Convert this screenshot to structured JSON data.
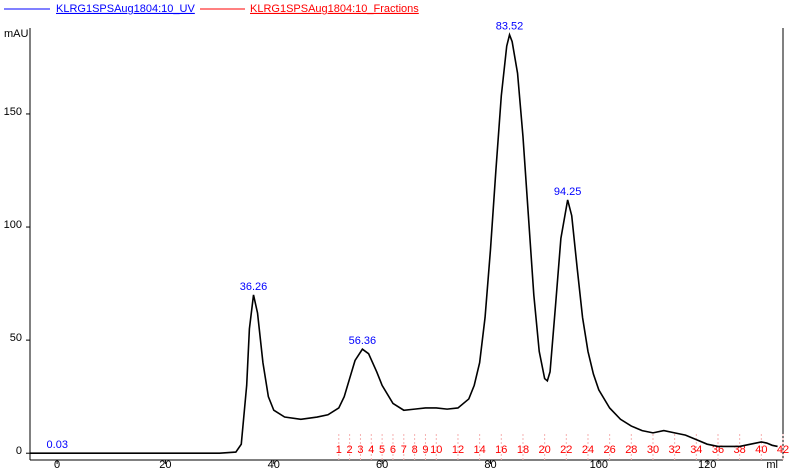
{
  "chart_data": {
    "type": "line",
    "y_label": "mAU",
    "x_label": "ml",
    "xlim": [
      -5,
      134
    ],
    "ylim": [
      -3,
      188
    ],
    "xticks": [
      0,
      20,
      40,
      60,
      80,
      100,
      120
    ],
    "yticks": [
      0,
      50,
      100,
      150
    ],
    "series": [
      {
        "name": "KLRG1SPSAug1804:10_UV",
        "color": "#0000ff",
        "x": [
          -5,
          0,
          10,
          20,
          30,
          33,
          34,
          35,
          35.5,
          36.26,
          37,
          38,
          39,
          40,
          42,
          45,
          48,
          50,
          52,
          53,
          54,
          55,
          56.36,
          57.5,
          59,
          60,
          62,
          64,
          66,
          68,
          70,
          72,
          74,
          76,
          77,
          78,
          79,
          80,
          81,
          82,
          83,
          83.52,
          84,
          85,
          86,
          87,
          88,
          89,
          90,
          90.5,
          91,
          92,
          93,
          94.25,
          95,
          96,
          97,
          98,
          99,
          100,
          102,
          104,
          106,
          108,
          110,
          112,
          114,
          116,
          118,
          120,
          122,
          124,
          126,
          128,
          130,
          131,
          132,
          133
        ],
        "values": [
          0,
          0,
          0,
          0,
          0,
          0.5,
          4,
          30,
          55,
          70,
          62,
          40,
          25,
          19,
          16,
          15,
          16,
          17,
          20,
          25,
          33,
          41,
          46,
          44,
          36,
          30,
          22,
          19,
          19.5,
          20,
          20,
          19.5,
          20,
          24,
          30,
          40,
          60,
          90,
          125,
          158,
          180,
          185,
          182,
          168,
          140,
          105,
          70,
          45,
          33,
          32,
          36,
          65,
          95,
          112,
          105,
          82,
          60,
          45,
          35,
          28,
          20,
          15,
          12,
          10,
          9,
          10,
          9,
          8,
          6,
          4,
          3,
          3,
          3,
          4,
          5,
          4.5,
          3.5,
          3
        ]
      }
    ],
    "fractions": {
      "name": "KLRG1SPSAug1804:10_Fractions",
      "color": "#ff0000",
      "labels": [
        "1",
        "2",
        "3",
        "4",
        "5",
        "6",
        "7",
        "8",
        "9",
        "10",
        "12",
        "14",
        "16",
        "18",
        "20",
        "22",
        "24",
        "26",
        "28",
        "30",
        "32",
        "34",
        "36",
        "38",
        "40",
        "42"
      ],
      "x": [
        52,
        54,
        56,
        58,
        60,
        62,
        64,
        66,
        68,
        70,
        74,
        78,
        82,
        86,
        90,
        94,
        98,
        102,
        106,
        110,
        114,
        118,
        122,
        126,
        130,
        134
      ]
    },
    "annotations": [
      {
        "text": "36.26",
        "x": 36.26,
        "y": 70
      },
      {
        "text": "56.36",
        "x": 56.36,
        "y": 46
      },
      {
        "text": "83.52",
        "x": 83.52,
        "y": 185
      },
      {
        "text": "94.25",
        "x": 94.25,
        "y": 112
      },
      {
        "text": "0.03",
        "x": 0.03,
        "y": 0
      }
    ]
  }
}
